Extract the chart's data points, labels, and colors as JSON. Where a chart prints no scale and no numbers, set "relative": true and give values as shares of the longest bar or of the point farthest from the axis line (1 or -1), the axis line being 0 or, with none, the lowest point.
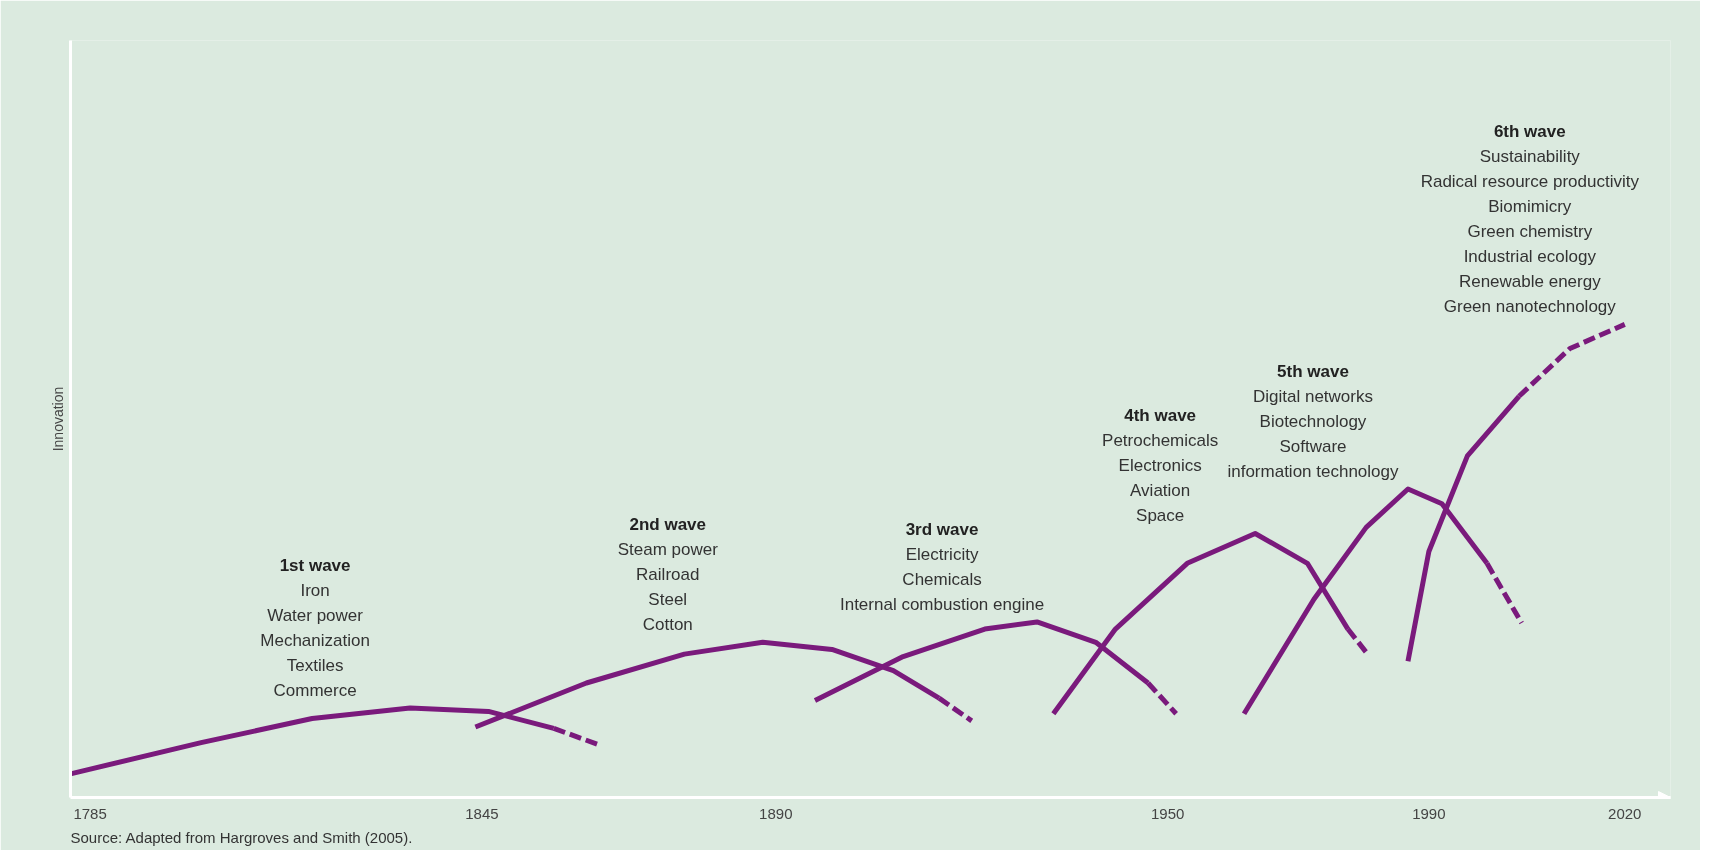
{
  "chart_data": {
    "type": "line",
    "relative": true,
    "ylabel": "Innovation",
    "xlim": [
      1782,
      2027
    ],
    "xticks": [
      1785,
      1845,
      1890,
      1950,
      1990,
      2020
    ],
    "grid": false,
    "series": [
      {
        "color": "#7a1a7c",
        "line_style": "solid",
        "x": [
          1782,
          1802,
          1819,
          1834,
          1846,
          1856
        ],
        "values": [
          0.05,
          0.116,
          0.167,
          0.189,
          0.182,
          0.146
        ]
      },
      {
        "color": "#7a1a7c",
        "line_style": "dashed",
        "x": [
          1856,
          1863
        ],
        "values": [
          0.146,
          0.111
        ]
      },
      {
        "color": "#7a1a7c",
        "line_style": "solid",
        "x": [
          1844,
          1861,
          1876,
          1888,
          1898.6,
          1908,
          1915
        ],
        "values": [
          0.149,
          0.242,
          0.303,
          0.328,
          0.313,
          0.268,
          0.21
        ]
      },
      {
        "color": "#7a1a7c",
        "line_style": "dashed",
        "x": [
          1915,
          1920
        ],
        "values": [
          0.21,
          0.162
        ]
      },
      {
        "color": "#7a1a7c",
        "line_style": "solid",
        "x": [
          1896,
          1909.5,
          1922,
          1930,
          1939,
          1947
        ],
        "values": [
          0.205,
          0.298,
          0.356,
          0.371,
          0.328,
          0.242
        ]
      },
      {
        "color": "#7a1a7c",
        "line_style": "dashed",
        "x": [
          1947,
          1951.3
        ],
        "values": [
          0.242,
          0.177
        ]
      },
      {
        "color": "#7a1a7c",
        "line_style": "solid",
        "x": [
          1932.5,
          1942,
          1953,
          1963.4,
          1971.4,
          1977.6
        ],
        "values": [
          0.177,
          0.356,
          0.495,
          0.558,
          0.495,
          0.356
        ]
      },
      {
        "color": "#7a1a7c",
        "line_style": "dashed",
        "x": [
          1977.6,
          1980.8
        ],
        "values": [
          0.356,
          0.3
        ]
      },
      {
        "color": "#7a1a7c",
        "line_style": "solid",
        "x": [
          1961.7,
          1972.4,
          1980.4,
          1986.8,
          1992,
          1998.9
        ],
        "values": [
          0.177,
          0.419,
          0.571,
          0.652,
          0.621,
          0.495
        ]
      },
      {
        "color": "#7a1a7c",
        "line_style": "dashed",
        "x": [
          1998.9,
          2004.2
        ],
        "values": [
          0.495,
          0.369
        ]
      },
      {
        "color": "#7a1a7c",
        "line_style": "solid",
        "x": [
          1986.8,
          1990,
          1995.9,
          2003.8
        ],
        "values": [
          0.288,
          0.52,
          0.722,
          0.848
        ]
      },
      {
        "color": "#7a1a7c",
        "line_style": "dashed",
        "x": [
          2003.8,
          2011.6,
          2020
        ],
        "values": [
          0.848,
          0.949,
          1.0
        ]
      }
    ],
    "annotations": [
      "1st wave\nIron\nWater power\nMechanization\nTextiles\nCommerce",
      "2nd wave\nSteam power\nRailroad\nSteel\nCotton",
      "3rd wave\nElectricity\nChemicals\nInternal combustion engine",
      "4th wave\nPetrochemicals\nElectronics\nAviation\nSpace",
      "5th wave\nDigital networks\nBiotechnology\nSoftware\ninformation technology",
      "6th wave\nSustainability\nRadical resource productivity\nBiomimicry\nGreen chemistry\nIndustrial ecology\nRenewable energy\nGreen nanotechnology",
      "Source: Adapted from Hargroves and Smith (2005)."
    ]
  }
}
